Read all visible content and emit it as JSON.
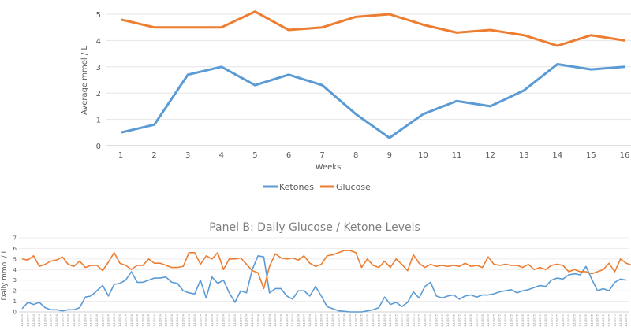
{
  "chart_data": [
    {
      "type": "line",
      "title": "",
      "xlabel": "Weeks",
      "ylabel": "Average mmol / L",
      "x": [
        1,
        2,
        3,
        4,
        5,
        6,
        7,
        8,
        9,
        10,
        11,
        12,
        13,
        14,
        15,
        16
      ],
      "ylim": [
        0,
        5
      ],
      "yticks": [
        0,
        1,
        2,
        3,
        4,
        5
      ],
      "grid": true,
      "legend": "bottom",
      "series": [
        {
          "name": "Ketones",
          "color": "#5b9bd5",
          "values": [
            0.5,
            0.8,
            2.7,
            3.0,
            2.3,
            2.7,
            2.3,
            1.2,
            0.3,
            1.2,
            1.7,
            1.5,
            2.1,
            3.1,
            2.9,
            3.0
          ]
        },
        {
          "name": "Glucose",
          "color": "#ed7d31",
          "values": [
            4.8,
            4.5,
            4.5,
            4.5,
            5.1,
            4.4,
            4.5,
            4.9,
            5.0,
            4.6,
            4.3,
            4.4,
            4.2,
            3.8,
            4.2,
            4.0
          ]
        }
      ]
    },
    {
      "type": "line",
      "title": "Panel B: Daily Glucose / Ketone Levels",
      "xlabel": "",
      "ylabel": "Daily mmol / L",
      "ylim": [
        0,
        7
      ],
      "yticks": [
        0,
        1,
        2,
        3,
        4,
        5,
        6,
        7
      ],
      "grid": true,
      "x_tick_years": [
        "2024",
        "2025"
      ],
      "x_tick_label_pattern": "…/2024 then …/2025 (rotated date labels, illegible)",
      "year_switch_index": 58,
      "series": [
        {
          "name": "Ketones",
          "color": "#5b9bd5",
          "values": [
            0.3,
            0.9,
            0.7,
            0.9,
            0.4,
            0.2,
            0.2,
            0.1,
            0.2,
            0.2,
            0.4,
            1.4,
            1.5,
            2.0,
            2.5,
            1.5,
            2.6,
            2.7,
            3.0,
            3.8,
            2.8,
            2.8,
            3.0,
            3.2,
            3.2,
            3.3,
            2.8,
            2.7,
            2.0,
            1.8,
            1.7,
            3.0,
            1.3,
            3.3,
            2.7,
            3.0,
            1.8,
            0.9,
            2.0,
            1.8,
            4.0,
            5.3,
            5.2,
            1.8,
            2.2,
            2.2,
            1.5,
            1.2,
            2.0,
            2.0,
            1.5,
            2.4,
            1.5,
            0.5,
            0.3,
            0.1,
            0.05,
            0.0,
            0.0,
            0.0,
            0.1,
            0.2,
            0.4,
            1.4,
            0.7,
            0.9,
            0.5,
            0.9,
            1.9,
            1.3,
            2.4,
            2.8,
            1.5,
            1.3,
            1.5,
            1.6,
            1.2,
            1.5,
            1.6,
            1.4,
            1.6,
            1.6,
            1.7,
            1.9,
            2.0,
            2.1,
            1.8,
            2.0,
            2.1,
            2.3,
            2.5,
            2.4,
            3.0,
            3.2,
            3.1,
            3.5,
            3.6,
            3.5,
            4.3,
            3.1,
            2.0,
            2.2,
            2.0,
            2.8,
            3.1,
            3.0
          ]
        },
        {
          "name": "Glucose",
          "color": "#ed7d31",
          "values": [
            5.0,
            4.9,
            5.3,
            4.3,
            4.5,
            4.8,
            4.9,
            5.2,
            4.5,
            4.3,
            4.8,
            4.2,
            4.4,
            4.4,
            3.9,
            4.7,
            5.6,
            4.6,
            4.4,
            4.0,
            4.4,
            4.4,
            5.0,
            4.6,
            4.6,
            4.4,
            4.2,
            4.2,
            4.3,
            5.6,
            5.6,
            4.5,
            5.3,
            5.0,
            5.6,
            4.0,
            5.0,
            5.0,
            5.1,
            4.5,
            3.9,
            3.7,
            2.2,
            4.3,
            5.5,
            5.1,
            5.0,
            5.1,
            4.9,
            5.3,
            4.6,
            4.3,
            4.5,
            5.3,
            5.4,
            5.6,
            5.8,
            5.8,
            5.6,
            4.2,
            5.0,
            4.4,
            4.2,
            4.8,
            4.2,
            5.0,
            4.5,
            3.9,
            5.4,
            4.6,
            4.2,
            4.5,
            4.3,
            4.4,
            4.3,
            4.4,
            4.3,
            4.6,
            4.3,
            4.4,
            4.2,
            5.2,
            4.5,
            4.4,
            4.5,
            4.4,
            4.4,
            4.2,
            4.5,
            4.0,
            4.2,
            4.0,
            4.4,
            4.5,
            4.4,
            3.8,
            4.0,
            3.8,
            3.8,
            3.6,
            3.8,
            4.0,
            4.6,
            3.8,
            5.0,
            4.6,
            4.4,
            4.2,
            3.8
          ]
        }
      ]
    }
  ]
}
